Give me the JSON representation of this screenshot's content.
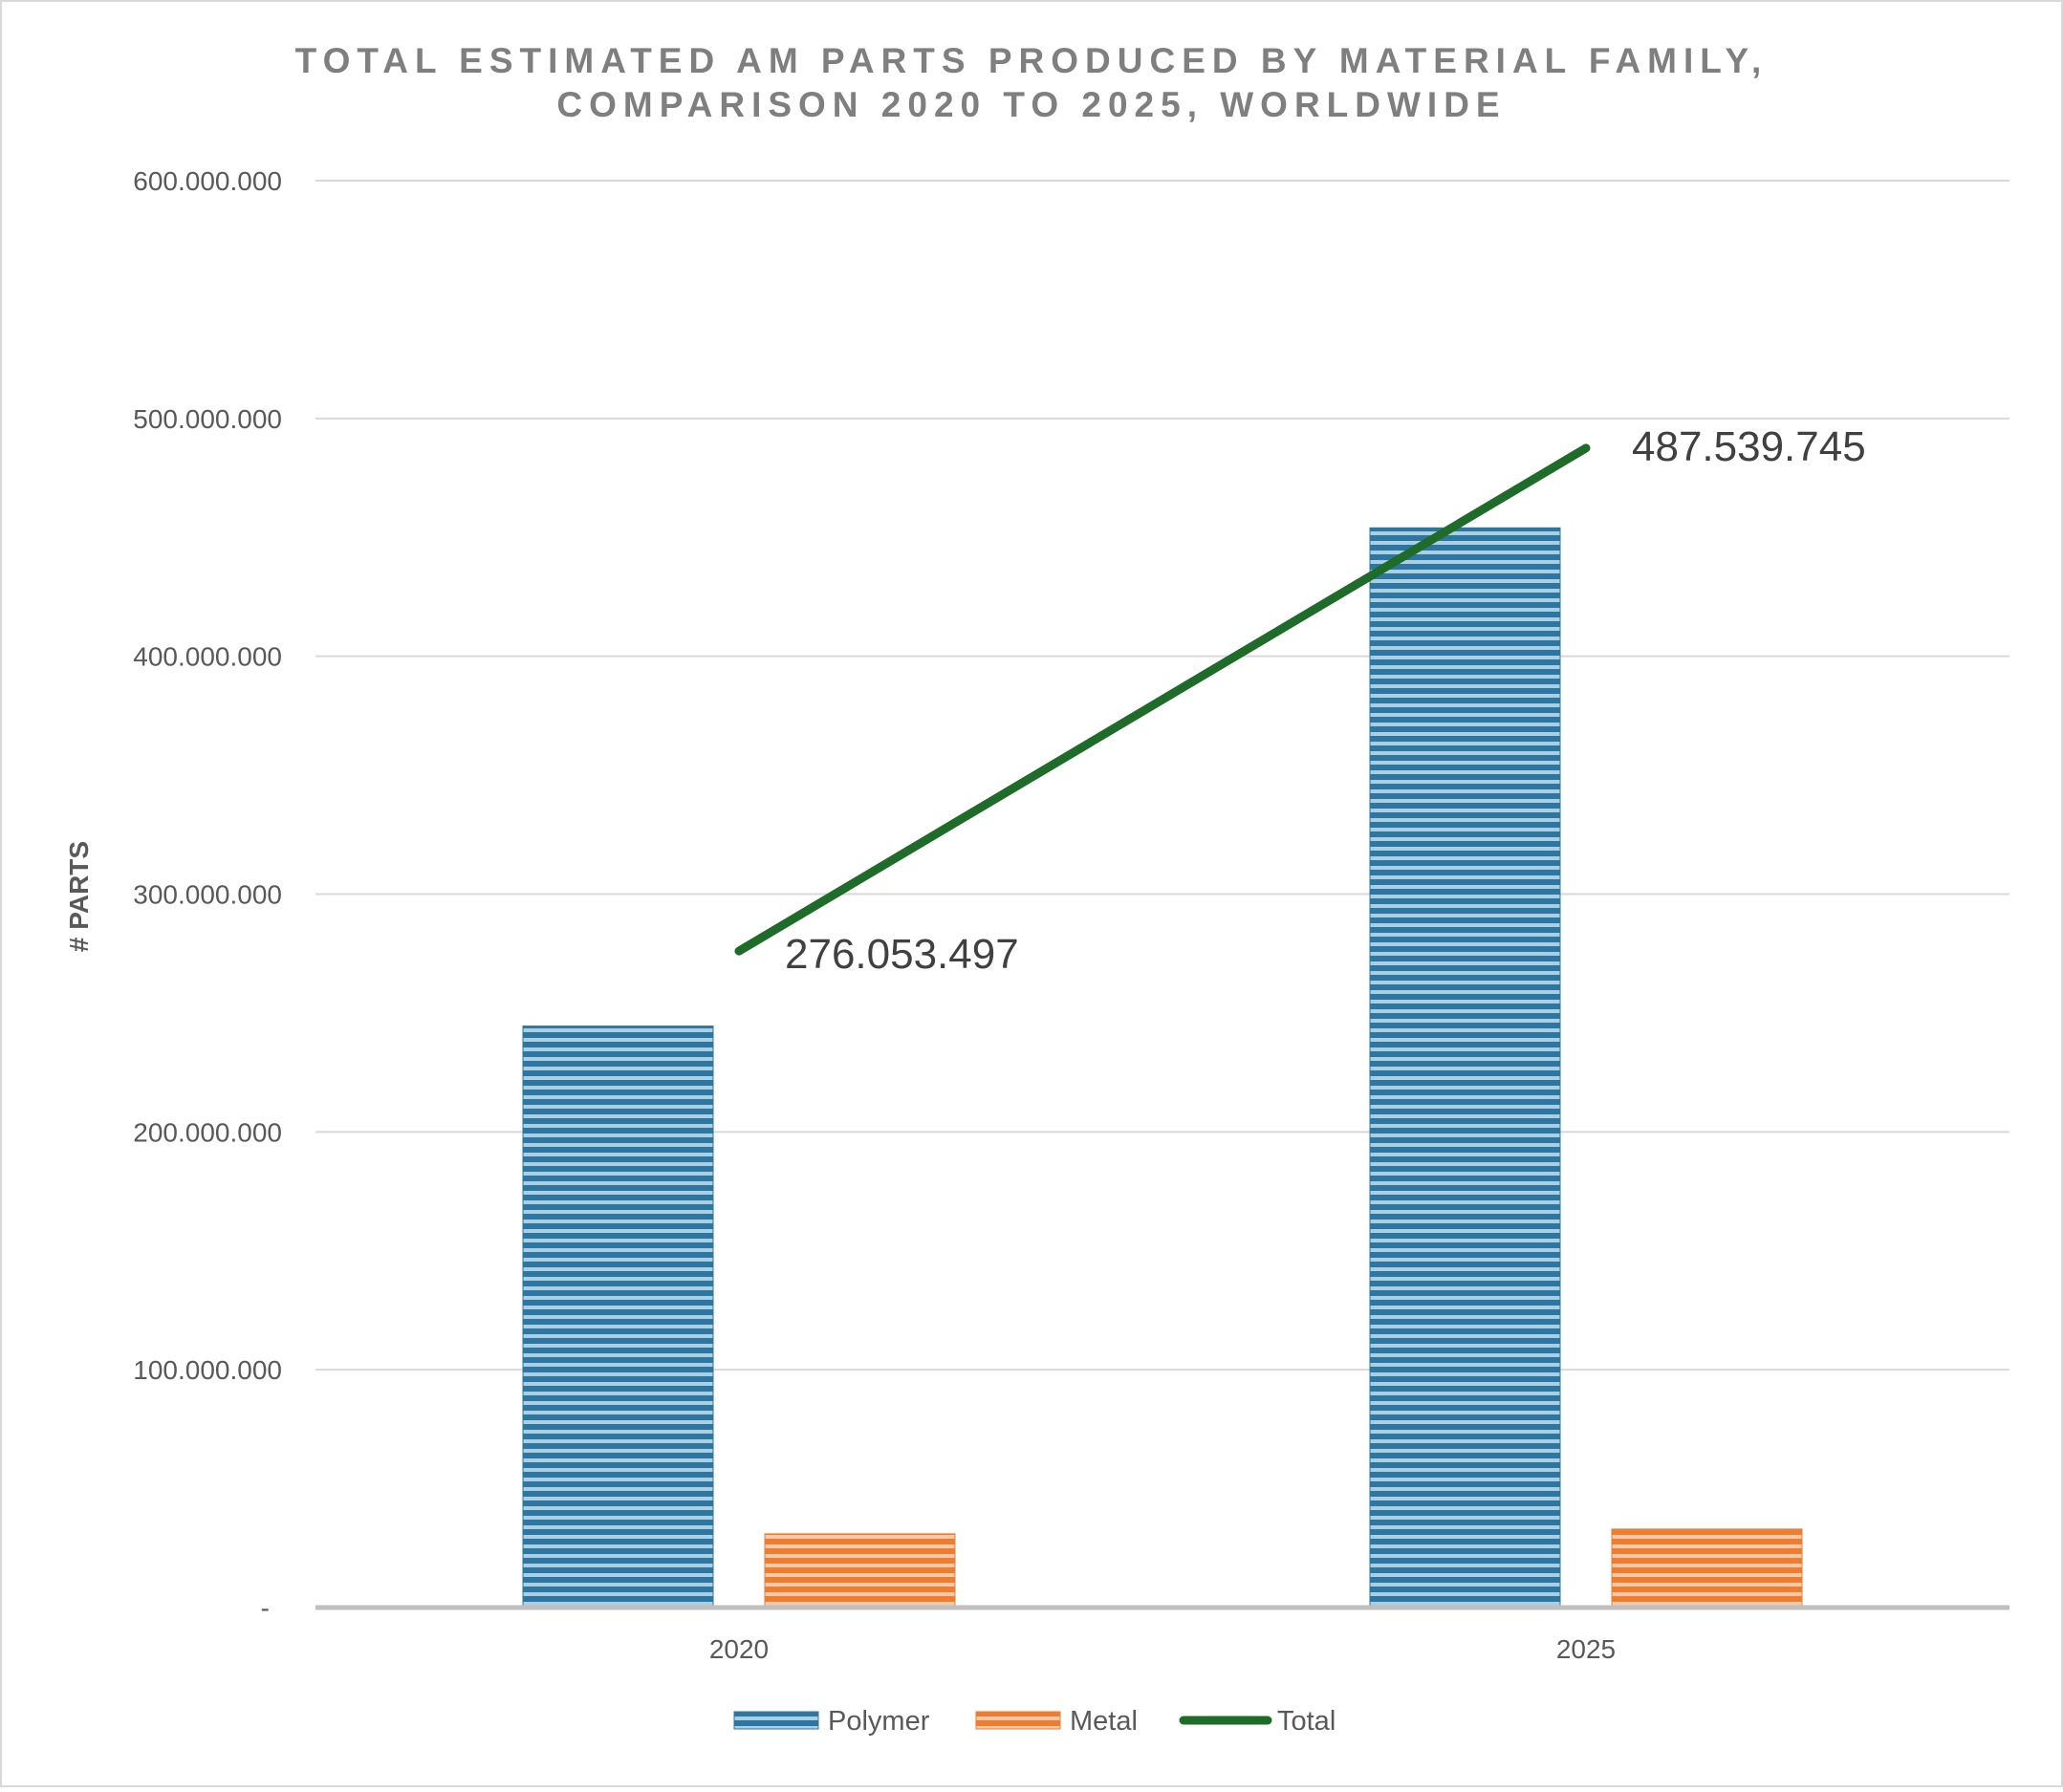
{
  "chart_data": {
    "type": "bar",
    "title": [
      "TOTAL ESTIMATED AM PARTS PRODUCED BY MATERIAL FAMILY,",
      "COMPARISON 2020 TO 2025, WORLDWIDE"
    ],
    "ylabel": "# PARTS",
    "xlabel": "",
    "categories": [
      "2020",
      "2025"
    ],
    "ylim": [
      0,
      600000000
    ],
    "yticks": [
      0,
      100000000,
      200000000,
      300000000,
      400000000,
      500000000,
      600000000
    ],
    "ytick_labels": [
      "-",
      "100.000.000",
      "200.000.000",
      "300.000.000",
      "400.000.000",
      "500.000.000",
      "600.000.000"
    ],
    "series": [
      {
        "name": "Polymer",
        "type": "bar",
        "color": "#2e75a0",
        "values": [
          244500000,
          454000000
        ]
      },
      {
        "name": "Metal",
        "type": "bar",
        "color": "#ed7d31",
        "values": [
          31000000,
          33000000
        ]
      },
      {
        "name": "Total",
        "type": "line",
        "color": "#1e6b2a",
        "values": [
          276053497,
          487539745
        ],
        "data_labels": [
          "276.053.497",
          "487.539.745"
        ]
      }
    ],
    "grid": true,
    "legend_position": "bottom"
  }
}
